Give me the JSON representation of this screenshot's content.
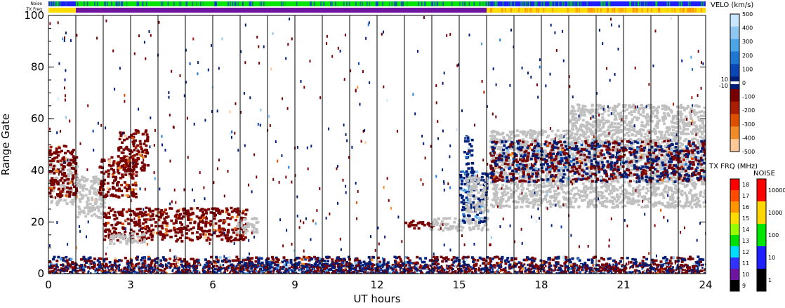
{
  "strips": {
    "noise_label": "Noise",
    "freq_label": "TX Freq"
  },
  "colorbars": {
    "velocity": {
      "title": "VELO (km/s)",
      "ticks": [
        "500",
        "400",
        "300",
        "200",
        "100",
        "0",
        "-100",
        "-200",
        "-300",
        "-400",
        "-500"
      ],
      "center_labels": [
        "10",
        "-10"
      ],
      "colors": [
        "#c8e6ff",
        "#8ec8f2",
        "#4aa4e6",
        "#1e78d2",
        "#0a46b4",
        "#001e78",
        "#780000",
        "#aa1e00",
        "#dc5000",
        "#f08c28",
        "#ffc896"
      ]
    },
    "frequency": {
      "title": "TX FRQ (MHz)",
      "ticks": [
        "18",
        "17",
        "16",
        "15",
        "14",
        "13",
        "12",
        "11",
        "10",
        "9"
      ],
      "colors": [
        "#ff0000",
        "#ff4b00",
        "#ff9600",
        "#ffdc00",
        "#96ff00",
        "#00e100",
        "#00dcff",
        "#3232ff",
        "#6e14a0",
        "#000000"
      ]
    },
    "noise": {
      "title": "NOISE",
      "ticks": [
        "10000",
        "1000",
        "100",
        "10",
        "1"
      ],
      "colors": [
        "#ff0000",
        "#ffd700",
        "#00e600",
        "#1e1eff",
        "#000000"
      ]
    }
  },
  "chart_data": {
    "type": "heatmap",
    "title": "",
    "xlabel": "UT hours",
    "ylabel": "Range Gate",
    "xlim": [
      0,
      24
    ],
    "ylim": [
      0,
      100
    ],
    "xticks": [
      0,
      3,
      6,
      9,
      12,
      15,
      18,
      21,
      24
    ],
    "yticks": [
      0,
      20,
      40,
      60,
      80,
      100
    ],
    "scan_boundaries_ut": [
      1,
      2,
      3,
      4,
      5,
      6,
      7,
      8,
      9,
      10,
      11,
      12,
      13,
      14,
      15,
      16,
      17,
      18,
      19,
      20,
      21,
      22,
      23
    ],
    "noise_strip": [
      {
        "from": 0,
        "to": 1,
        "level": "10"
      },
      {
        "from": 1,
        "to": 16,
        "level": "100"
      },
      {
        "from": 16,
        "to": 24,
        "level": "10"
      }
    ],
    "tx_freq_strip": [
      {
        "from": 0,
        "to": 1,
        "mhz": "15"
      },
      {
        "from": 1,
        "to": 16,
        "mhz": "10"
      },
      {
        "from": 16,
        "to": 24,
        "mhz": "15"
      }
    ],
    "regions": [
      {
        "label": "ground scatter",
        "x0": 0,
        "x1": 1,
        "y0": 27,
        "y1": 45,
        "color": "gray"
      },
      {
        "label": "mixed negative",
        "x0": 0,
        "x1": 1,
        "y0": 30,
        "y1": 50,
        "color": "negative"
      },
      {
        "label": "ground scatter",
        "x0": 1,
        "x1": 2,
        "y0": 22,
        "y1": 38,
        "color": "gray"
      },
      {
        "label": "negative",
        "x0": 1.8,
        "x1": 3.2,
        "y0": 30,
        "y1": 46,
        "color": "negative"
      },
      {
        "label": "negative",
        "x0": 2.5,
        "x1": 3.6,
        "y0": 40,
        "y1": 56,
        "color": "negative"
      },
      {
        "label": "negative",
        "x0": 2,
        "x1": 7.2,
        "y0": 13,
        "y1": 26,
        "color": "negative"
      },
      {
        "label": "ground scatter",
        "x0": 2.2,
        "x1": 3.5,
        "y0": 12,
        "y1": 16,
        "color": "gray"
      },
      {
        "label": "ground scatter",
        "x0": 6.8,
        "x1": 7.6,
        "y0": 16,
        "y1": 22,
        "color": "gray"
      },
      {
        "label": "negative",
        "x0": 13,
        "x1": 14.2,
        "y0": 18,
        "y1": 21,
        "color": "negative"
      },
      {
        "label": "ground scatter",
        "x0": 13.9,
        "x1": 16,
        "y0": 17,
        "y1": 22,
        "color": "gray"
      },
      {
        "label": "positive",
        "x0": 15,
        "x1": 16,
        "y0": 20,
        "y1": 40,
        "color": "positive"
      },
      {
        "label": "positive spike",
        "x0": 15.15,
        "x1": 15.45,
        "y0": 38,
        "y1": 55,
        "color": "positive"
      },
      {
        "label": "ground scatter",
        "x0": 15.2,
        "x1": 16,
        "y0": 24,
        "y1": 38,
        "color": "gray"
      },
      {
        "label": "ground scatter",
        "x0": 16.1,
        "x1": 24,
        "y0": 26,
        "y1": 56,
        "color": "gray"
      },
      {
        "label": "mixed",
        "x0": 16.1,
        "x1": 24,
        "y0": 36,
        "y1": 52,
        "color": "mixed"
      },
      {
        "label": "ground scatter",
        "x0": 19,
        "x1": 24,
        "y0": 56,
        "y1": 66,
        "color": "gray"
      },
      {
        "label": "near-range mixed",
        "x0": 0,
        "x1": 24,
        "y0": 0,
        "y1": 7,
        "color": "mixed"
      },
      {
        "label": "near-range positive",
        "x0": 7,
        "x1": 13,
        "y0": 0,
        "y1": 5,
        "color": "positive"
      }
    ]
  }
}
